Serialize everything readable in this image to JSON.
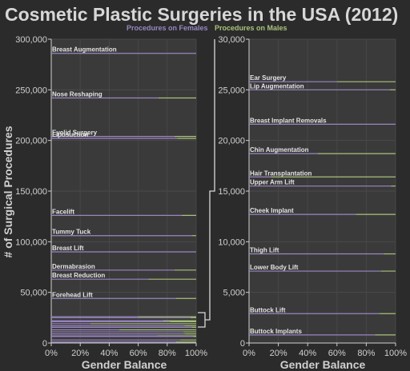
{
  "title": "Cosmetic Plastic Surgeries in the USA (2012)",
  "legend": {
    "female_label": "Procedures on Females",
    "male_label": "Procedures on Males",
    "female_color": "#9a86c2",
    "male_color": "#a9c27c"
  },
  "chart_data": [
    {
      "type": "line",
      "panel": "left",
      "xlabel": "Gender Balance",
      "ylabel": "# of Surgical Procedures",
      "ylim": [
        0,
        300000
      ],
      "xlim": [
        0,
        100
      ],
      "x_ticks": [
        "0%",
        "20%",
        "40%",
        "60%",
        "80%",
        "100%"
      ],
      "y_ticks": [
        "0",
        "50,000",
        "100,000",
        "150,000",
        "200,000",
        "250,000",
        "300,000"
      ],
      "grid": true,
      "series": [
        {
          "name": "Breast Augmentation",
          "total": 286000,
          "female_pct": 100
        },
        {
          "name": "Nose Reshaping",
          "total": 242000,
          "female_pct": 74
        },
        {
          "name": "Eyelid Surgery",
          "total": 204000,
          "female_pct": 85
        },
        {
          "name": "Liposuction",
          "total": 202000,
          "female_pct": 87
        },
        {
          "name": "Facelift",
          "total": 126000,
          "female_pct": 90
        },
        {
          "name": "Tummy Tuck",
          "total": 106000,
          "female_pct": 97
        },
        {
          "name": "Breast Lift",
          "total": 90000,
          "female_pct": 100
        },
        {
          "name": "Dermabrasion",
          "total": 72000,
          "female_pct": 85
        },
        {
          "name": "Breast Reduction",
          "total": 63000,
          "female_pct": 67
        },
        {
          "name": "Forehead Lift",
          "total": 44000,
          "female_pct": 86
        },
        {
          "name": "",
          "total": 26000,
          "female_pct": 60
        },
        {
          "name": "",
          "total": 25000,
          "female_pct": 96
        },
        {
          "name": "",
          "total": 22000,
          "female_pct": 77
        },
        {
          "name": "",
          "total": 21000,
          "female_pct": 82
        },
        {
          "name": "",
          "total": 19000,
          "female_pct": 27
        },
        {
          "name": "",
          "total": 17000,
          "female_pct": 92
        },
        {
          "name": "",
          "total": 15500,
          "female_pct": 97
        },
        {
          "name": "",
          "total": 13000,
          "female_pct": 47
        },
        {
          "name": "",
          "total": 11000,
          "female_pct": 91
        },
        {
          "name": "",
          "total": 9000,
          "female_pct": 92
        },
        {
          "name": "",
          "total": 7000,
          "female_pct": 73
        },
        {
          "name": "",
          "total": 6500,
          "female_pct": 98
        },
        {
          "name": "",
          "total": 3000,
          "female_pct": 89
        },
        {
          "name": "",
          "total": 1000,
          "female_pct": 86
        }
      ]
    },
    {
      "type": "line",
      "panel": "right",
      "xlabel": "Gender Balance",
      "ylim": [
        0,
        30000
      ],
      "xlim": [
        0,
        100
      ],
      "x_ticks": [
        "0%",
        "20%",
        "40%",
        "60%",
        "80%",
        "100%"
      ],
      "y_ticks": [
        "0",
        "5,000",
        "10,000",
        "15,000",
        "20,000",
        "25,000",
        "30,000"
      ],
      "grid": true,
      "series": [
        {
          "name": "Ear Surgery",
          "total": 25800,
          "female_pct": 60
        },
        {
          "name": "Lip Augmentation",
          "total": 25000,
          "female_pct": 96
        },
        {
          "name": "Breast Implant Removals",
          "total": 21600,
          "female_pct": 100
        },
        {
          "name": "Chin Augmentation",
          "total": 18700,
          "female_pct": 47
        },
        {
          "name": "Hair Transplantation",
          "total": 16400,
          "female_pct": 15
        },
        {
          "name": "Upper Arm Lift",
          "total": 15500,
          "female_pct": 97
        },
        {
          "name": "Cheek Implant",
          "total": 12700,
          "female_pct": 73
        },
        {
          "name": "Thigh Lift",
          "total": 8800,
          "female_pct": 92
        },
        {
          "name": "Lower Body Lift",
          "total": 7100,
          "female_pct": 90
        },
        {
          "name": "Buttock Lift",
          "total": 2900,
          "female_pct": 89
        },
        {
          "name": "Buttock Implants",
          "total": 800,
          "female_pct": 86
        }
      ]
    }
  ]
}
